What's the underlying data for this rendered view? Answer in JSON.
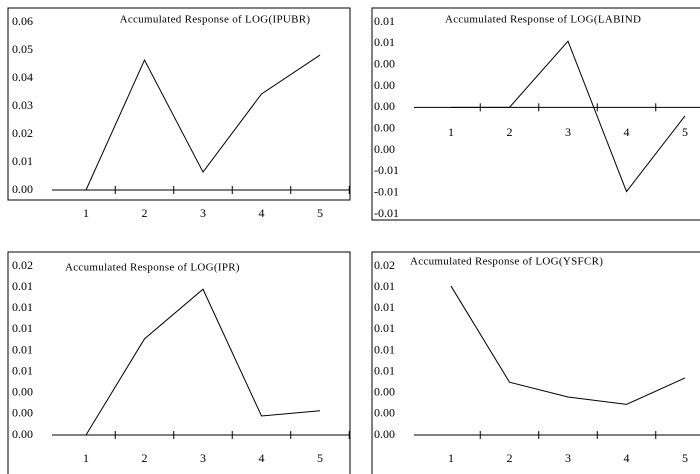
{
  "chart_data": [
    {
      "type": "line",
      "title": "Accumulated Response of LOG(IPUBR)",
      "categories": [
        "1",
        "2",
        "3",
        "4",
        "5"
      ],
      "values": [
        0,
        0.0464,
        0.0064,
        0.0343,
        0.0482
      ],
      "color": "#000000",
      "ylim": [
        0,
        0.06
      ],
      "yticks": [
        {
          "value": 0,
          "label": "0.00"
        },
        {
          "value": 0.01,
          "label": "0.01"
        },
        {
          "value": 0.02,
          "label": "0.02"
        },
        {
          "value": 0.03,
          "label": "0.03"
        },
        {
          "value": 0.04,
          "label": "0.04"
        },
        {
          "value": 0.05,
          "label": "0.05"
        },
        {
          "value": 0.06,
          "label": "0.06"
        }
      ]
    },
    {
      "type": "line",
      "title": "Accumulated Response of LOG(LABIND",
      "categories": [
        "1",
        "2",
        "3",
        "4",
        "5"
      ],
      "values": [
        0,
        0,
        0.0062,
        -0.0079,
        -0.0008
      ],
      "color": "#000000",
      "ylim": [
        -0.01,
        0.008
      ],
      "yticks": [
        {
          "value": -0.01,
          "label": "-0.01"
        },
        {
          "value": -0.008,
          "label": "-0.01"
        },
        {
          "value": -0.006,
          "label": "-0.01"
        },
        {
          "value": -0.004,
          "label": "0.00"
        },
        {
          "value": -0.002,
          "label": "0.00"
        },
        {
          "value": 0,
          "label": "0.00"
        },
        {
          "value": 0.002,
          "label": "0.00"
        },
        {
          "value": 0.004,
          "label": "0.00"
        },
        {
          "value": 0.006,
          "label": "0.01"
        },
        {
          "value": 0.008,
          "label": "0.01"
        }
      ]
    },
    {
      "type": "line",
      "title": "Accumulated Response of LOG(IPR)",
      "categories": [
        "1",
        "2",
        "3",
        "4",
        "5"
      ],
      "values": [
        0,
        0.0091,
        0.0138,
        0.0018,
        0.0023
      ],
      "color": "#000000",
      "ylim": [
        0,
        0.016
      ],
      "yticks": [
        {
          "value": 0,
          "label": "0.00"
        },
        {
          "value": 0.002,
          "label": "0.00"
        },
        {
          "value": 0.004,
          "label": "0.00"
        },
        {
          "value": 0.006,
          "label": "0.01"
        },
        {
          "value": 0.008,
          "label": "0.01"
        },
        {
          "value": 0.01,
          "label": "0.01"
        },
        {
          "value": 0.012,
          "label": "0.01"
        },
        {
          "value": 0.014,
          "label": "0.01"
        },
        {
          "value": 0.016,
          "label": "0.02"
        }
      ]
    },
    {
      "type": "line",
      "title": "Accumulated Response of LOG(YSFCR)",
      "categories": [
        "1",
        "2",
        "3",
        "4",
        "5"
      ],
      "values": [
        0.0141,
        0.005,
        0.0036,
        0.0029,
        0.0054
      ],
      "color": "#000000",
      "ylim": [
        0,
        0.016
      ],
      "yticks": [
        {
          "value": 0,
          "label": "0.00"
        },
        {
          "value": 0.002,
          "label": "0.00"
        },
        {
          "value": 0.004,
          "label": "0.00"
        },
        {
          "value": 0.006,
          "label": "0.01"
        },
        {
          "value": 0.008,
          "label": "0.01"
        },
        {
          "value": 0.01,
          "label": "0.01"
        },
        {
          "value": 0.012,
          "label": "0.01"
        },
        {
          "value": 0.014,
          "label": "0.01"
        },
        {
          "value": 0.016,
          "label": "0.02"
        }
      ]
    }
  ]
}
